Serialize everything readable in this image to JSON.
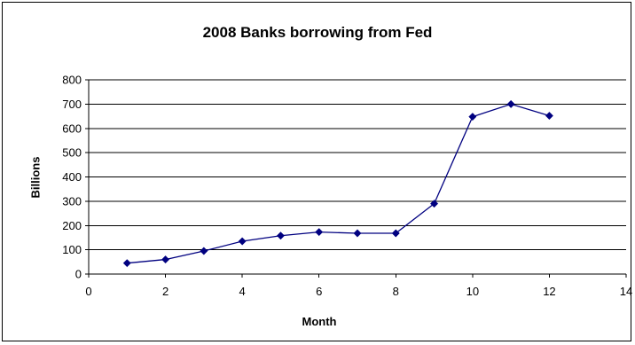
{
  "chart_data": {
    "type": "line",
    "title": "2008 Banks borrowing from Fed",
    "xlabel": "Month",
    "ylabel": "Billions",
    "xlim": [
      0,
      14
    ],
    "ylim": [
      0,
      800
    ],
    "x_ticks": [
      0,
      2,
      4,
      6,
      8,
      10,
      12,
      14
    ],
    "y_ticks": [
      0,
      100,
      200,
      300,
      400,
      500,
      600,
      700,
      800
    ],
    "grid": "horizontal",
    "legend": "none",
    "series": [
      {
        "color": "#000080",
        "marker": "diamond",
        "x": [
          1,
          2,
          3,
          4,
          5,
          6,
          7,
          8,
          9,
          10,
          11,
          12
        ],
        "y": [
          45,
          60,
          95,
          135,
          158,
          173,
          168,
          168,
          290,
          648,
          700,
          652
        ]
      }
    ]
  }
}
